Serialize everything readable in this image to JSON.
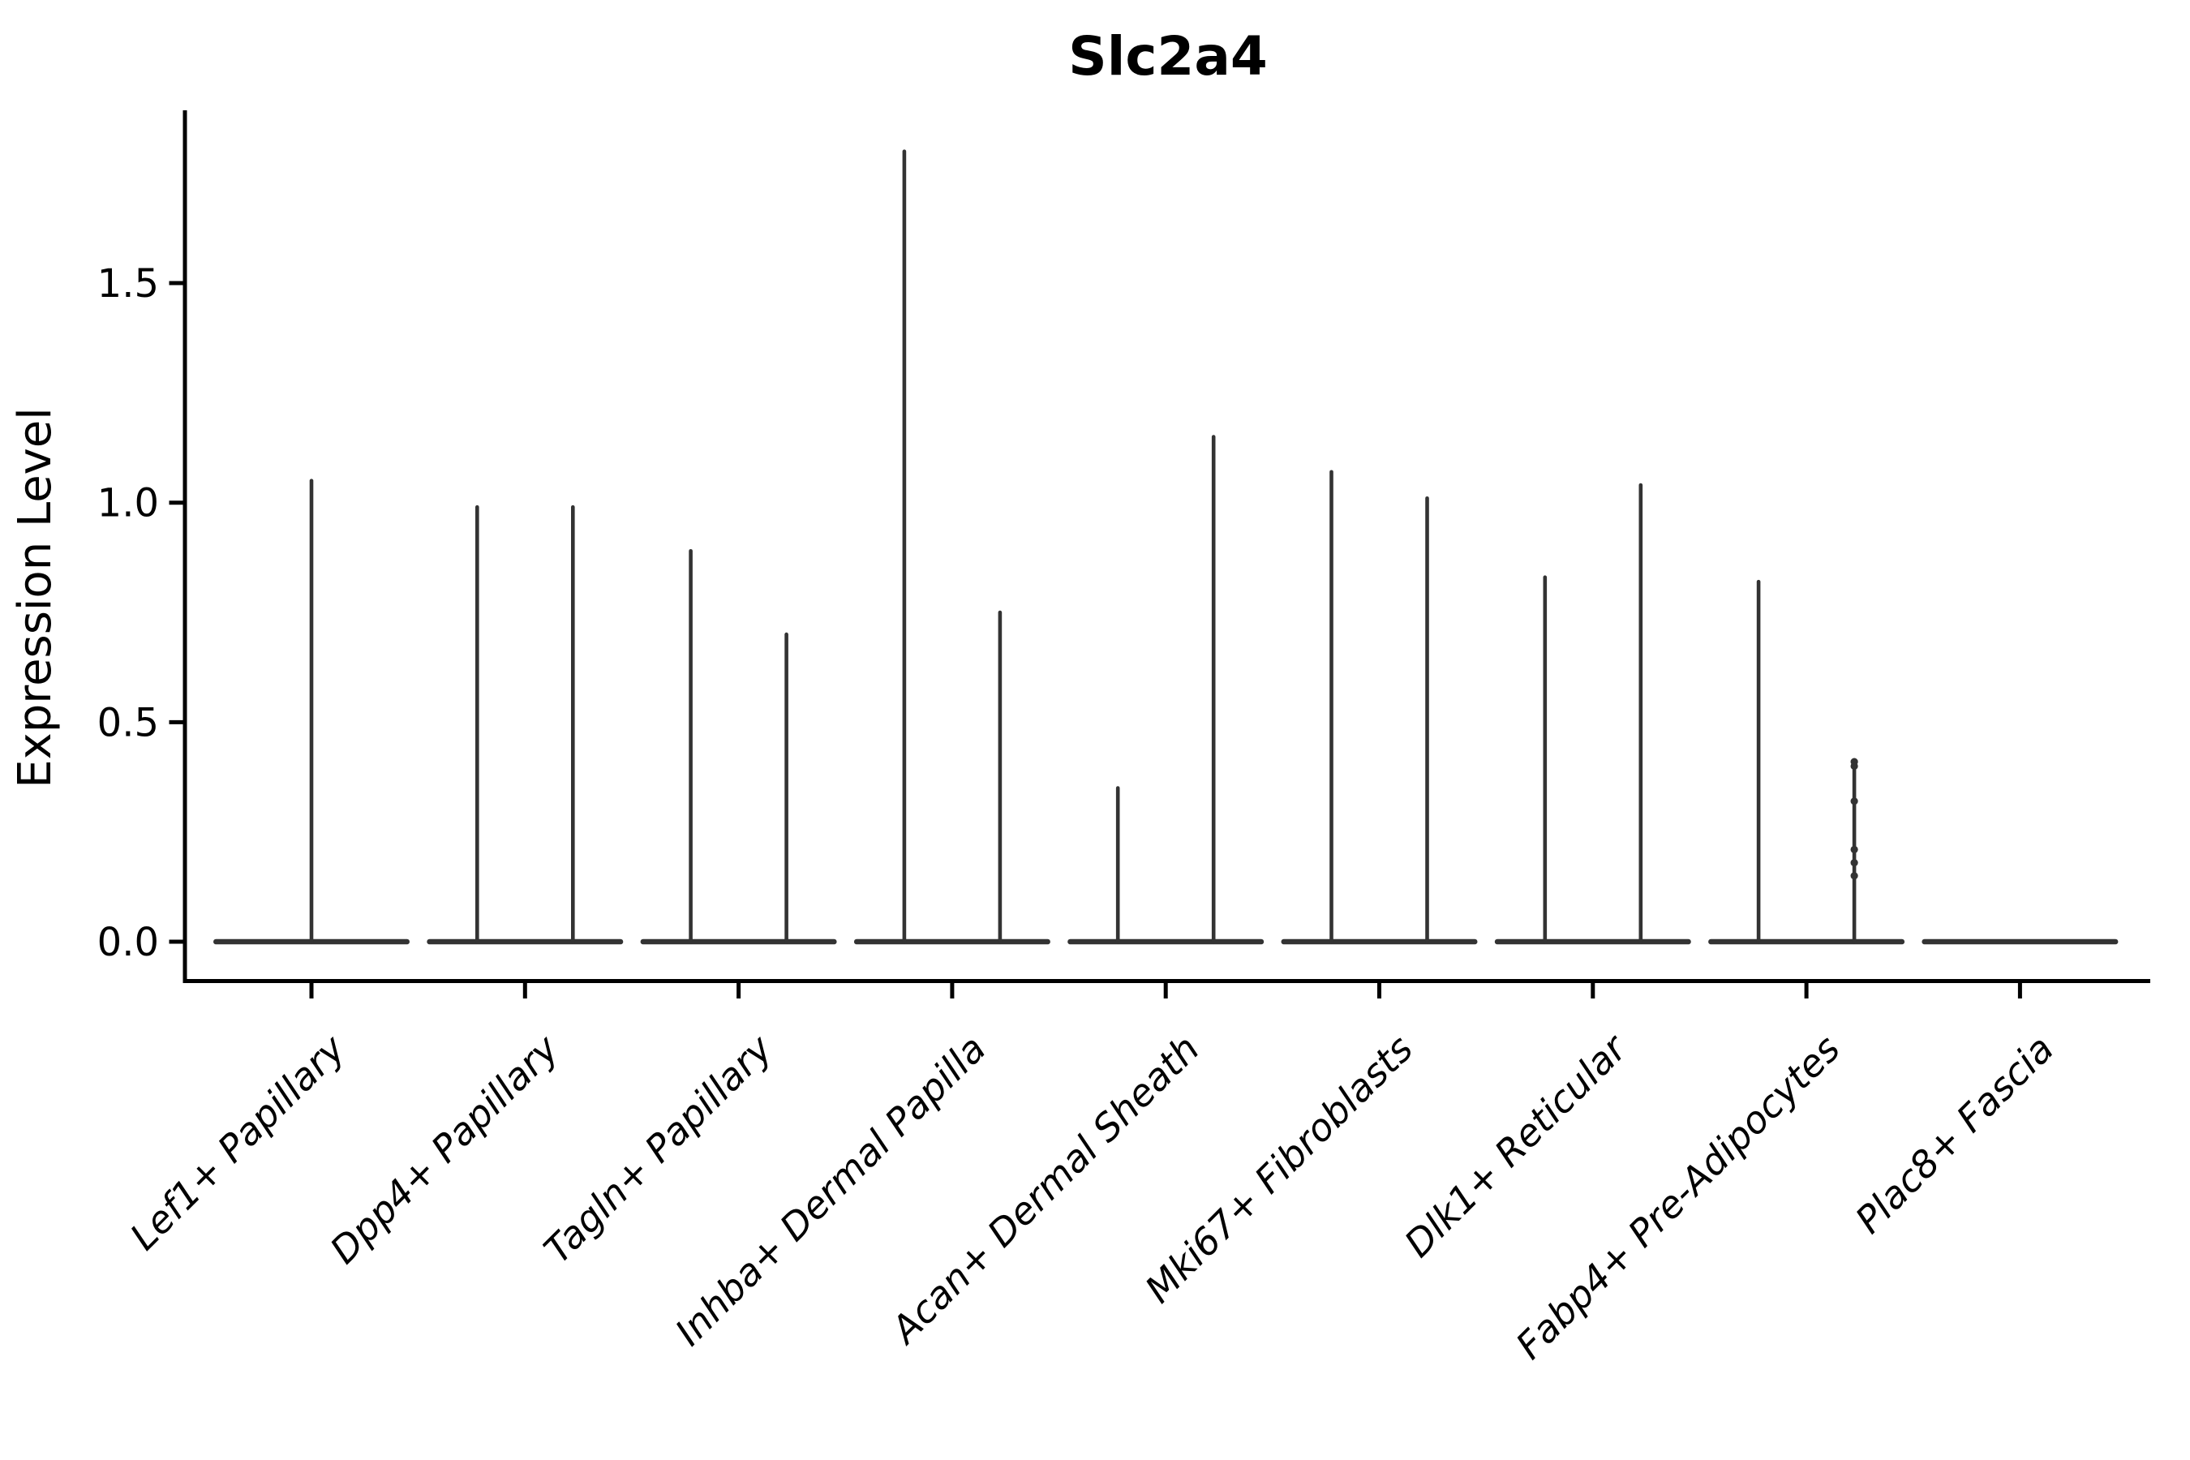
{
  "figure": {
    "background": "#ffffff",
    "ink_color": "#000000",
    "violin_color": "#333333"
  },
  "chart_data": {
    "type": "violin",
    "title": "Slc2a4",
    "xlabel": "",
    "ylabel": "Expression Level",
    "grid": false,
    "legend": "none",
    "ylim": [
      -0.06,
      1.89
    ],
    "ytick_labels": [
      "0.0",
      "0.5",
      "1.0",
      "1.5"
    ],
    "ytick_values": [
      0.0,
      0.5,
      1.0,
      1.5
    ],
    "categories": [
      "Lef1+ Papillary",
      "Dpp4+ Papillary",
      "Tagln+ Papillary",
      "Inhba+ Dermal Papilla",
      "Acan+ Dermal Sheath",
      "Mki67+ Fibroblasts",
      "Dlk1+ Reticular",
      "Fabp4+ Pre-Adipocytes",
      "Plac8+ Fascia"
    ],
    "violins": [
      {
        "category": "Lef1+ Papillary",
        "base_at": 0,
        "spikes": [
          {
            "side": 0,
            "max": 1.05
          }
        ]
      },
      {
        "category": "Dpp4+ Papillary",
        "base_at": 0,
        "spikes": [
          {
            "side": -1,
            "max": 0.99
          },
          {
            "side": 1,
            "max": 0.99
          }
        ]
      },
      {
        "category": "Tagln+ Papillary",
        "base_at": 0,
        "spikes": [
          {
            "side": -1,
            "max": 0.89
          },
          {
            "side": 1,
            "max": 0.7
          }
        ]
      },
      {
        "category": "Inhba+ Dermal Papilla",
        "base_at": 0,
        "spikes": [
          {
            "side": -1,
            "max": 1.8
          },
          {
            "side": 1,
            "max": 0.75
          }
        ]
      },
      {
        "category": "Acan+ Dermal Sheath",
        "base_at": 0,
        "spikes": [
          {
            "side": -1,
            "max": 0.35
          },
          {
            "side": 1,
            "max": 1.15
          }
        ]
      },
      {
        "category": "Mki67+ Fibroblasts",
        "base_at": 0,
        "spikes": [
          {
            "side": -1,
            "max": 1.07
          },
          {
            "side": 1,
            "max": 1.01
          }
        ]
      },
      {
        "category": "Dlk1+ Reticular",
        "base_at": 0,
        "spikes": [
          {
            "side": -1,
            "max": 0.83
          },
          {
            "side": 1,
            "max": 1.04
          }
        ]
      },
      {
        "category": "Fabp4+ Pre-Adipocytes",
        "base_at": 0,
        "spikes": [
          {
            "side": -1,
            "max": 0.82
          },
          {
            "side": 1,
            "max": 0.41,
            "points": [
              0.41,
              0.4,
              0.32,
              0.21,
              0.18,
              0.15
            ]
          }
        ]
      },
      {
        "category": "Plac8+ Fascia",
        "base_at": 0,
        "spikes": []
      }
    ]
  }
}
